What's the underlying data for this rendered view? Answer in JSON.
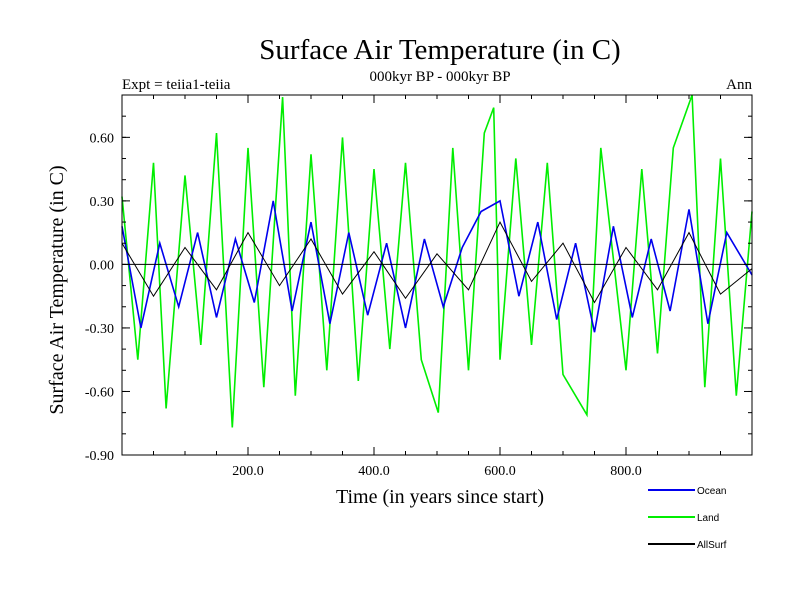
{
  "chart_data": {
    "type": "line",
    "title": "Surface Air Temperature (in C)",
    "subtitle": "000kyr BP - 000kyr BP",
    "left_note": "Expt = teiia1-teiia",
    "right_note": "Ann",
    "xlabel": "Time (in years since start)",
    "ylabel": "Surface Air Temperature (in C)",
    "xlim": [
      0,
      1000
    ],
    "ylim": [
      -0.9,
      0.8
    ],
    "xticks": [
      200,
      400,
      600,
      800
    ],
    "xtick_labels": [
      "200.0",
      "400.0",
      "600.0",
      "800.0"
    ],
    "yticks": [
      -0.9,
      -0.6,
      -0.3,
      0.0,
      0.3,
      0.6
    ],
    "ytick_labels": [
      "-0.90",
      "-0.60",
      "-0.30",
      "0.00",
      "0.30",
      "0.60"
    ],
    "zero_line": true,
    "grid": false,
    "legend_position": "bottom-right",
    "series": [
      {
        "name": "Land",
        "color": "#00ee00",
        "x": [
          0,
          25,
          50,
          70,
          100,
          125,
          150,
          175,
          200,
          225,
          255,
          275,
          300,
          325,
          350,
          375,
          400,
          425,
          450,
          475,
          502,
          525,
          550,
          575,
          590,
          600,
          625,
          650,
          675,
          700,
          738,
          760,
          800,
          825,
          850,
          875,
          905,
          925,
          950,
          975,
          1000
        ],
        "values": [
          0.32,
          -0.45,
          0.48,
          -0.68,
          0.42,
          -0.38,
          0.62,
          -0.77,
          0.55,
          -0.58,
          0.79,
          -0.62,
          0.52,
          -0.5,
          0.6,
          -0.55,
          0.45,
          -0.4,
          0.48,
          -0.45,
          -0.7,
          0.55,
          -0.5,
          0.62,
          0.74,
          -0.45,
          0.5,
          -0.38,
          0.48,
          -0.52,
          -0.71,
          0.55,
          -0.5,
          0.45,
          -0.42,
          0.55,
          0.8,
          -0.58,
          0.5,
          -0.62,
          0.25
        ]
      },
      {
        "name": "Ocean",
        "color": "#0000ee",
        "x": [
          0,
          30,
          60,
          90,
          120,
          150,
          180,
          210,
          240,
          270,
          300,
          330,
          360,
          390,
          420,
          450,
          480,
          510,
          540,
          570,
          600,
          630,
          660,
          690,
          720,
          750,
          780,
          810,
          840,
          870,
          900,
          930,
          960,
          1000
        ],
        "values": [
          0.18,
          -0.3,
          0.1,
          -0.2,
          0.15,
          -0.25,
          0.12,
          -0.18,
          0.3,
          -0.22,
          0.2,
          -0.28,
          0.15,
          -0.24,
          0.1,
          -0.3,
          0.12,
          -0.2,
          0.08,
          0.25,
          0.3,
          -0.15,
          0.2,
          -0.26,
          0.1,
          -0.32,
          0.18,
          -0.25,
          0.12,
          -0.22,
          0.26,
          -0.28,
          0.15,
          -0.05
        ]
      },
      {
        "name": "AllSurf",
        "color": "#000000",
        "x": [
          0,
          50,
          100,
          150,
          200,
          250,
          300,
          350,
          400,
          450,
          500,
          550,
          600,
          650,
          700,
          750,
          800,
          850,
          900,
          950,
          1000
        ],
        "values": [
          0.1,
          -0.15,
          0.08,
          -0.12,
          0.15,
          -0.1,
          0.12,
          -0.14,
          0.06,
          -0.16,
          0.05,
          -0.12,
          0.2,
          -0.08,
          0.1,
          -0.18,
          0.08,
          -0.12,
          0.15,
          -0.14,
          -0.02
        ]
      }
    ]
  }
}
